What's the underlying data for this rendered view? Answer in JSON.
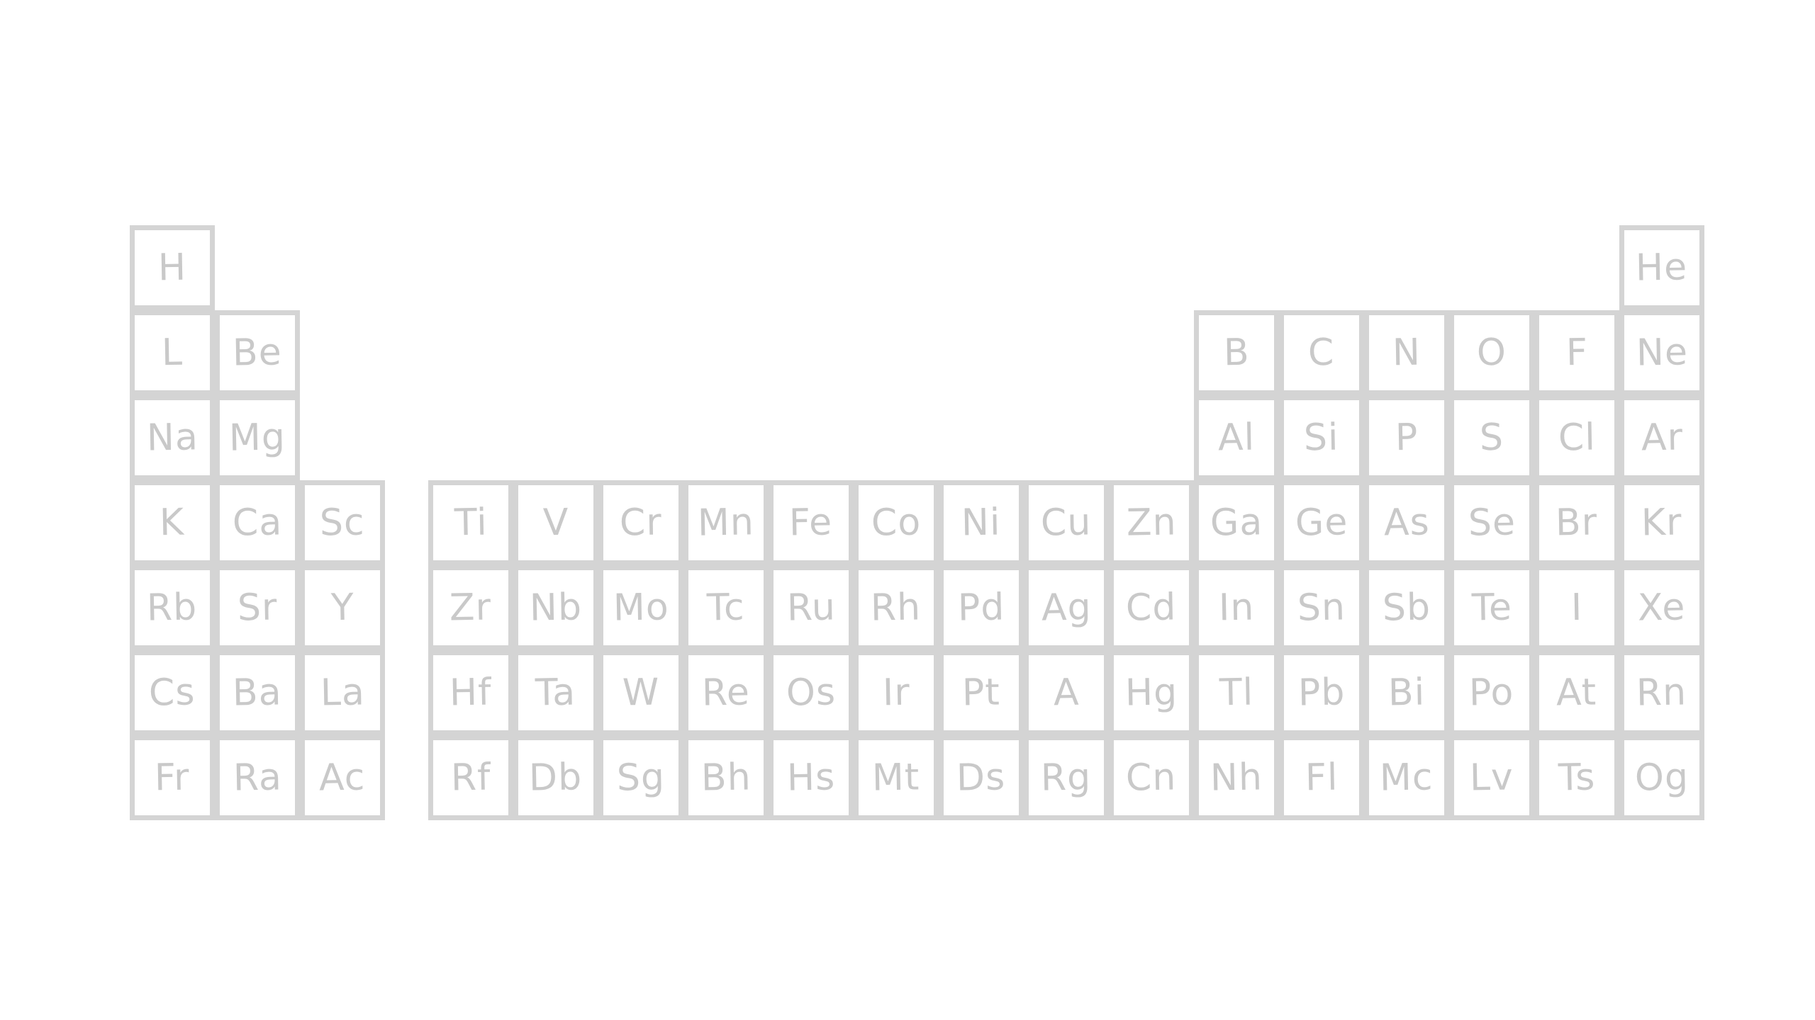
{
  "periodic_table": {
    "rows": [
      [
        "H",
        null,
        null,
        null,
        null,
        null,
        null,
        null,
        null,
        null,
        null,
        null,
        null,
        null,
        null,
        null,
        null,
        "He"
      ],
      [
        "L",
        "Be",
        null,
        null,
        null,
        null,
        null,
        null,
        null,
        null,
        null,
        null,
        "B",
        "C",
        "N",
        "O",
        "F",
        "Ne"
      ],
      [
        "Na",
        "Mg",
        null,
        null,
        null,
        null,
        null,
        null,
        null,
        null,
        null,
        null,
        "Al",
        "Si",
        "P",
        "S",
        "Cl",
        "Ar"
      ],
      [
        "K",
        "Ca",
        "Sc",
        "Ti",
        "V",
        "Cr",
        "Mn",
        "Fe",
        "Co",
        "Ni",
        "Cu",
        "Zn",
        "Ga",
        "Ge",
        "As",
        "Se",
        "Br",
        "Kr"
      ],
      [
        "Rb",
        "Sr",
        "Y",
        "Zr",
        "Nb",
        "Mo",
        "Tc",
        "Ru",
        "Rh",
        "Pd",
        "Ag",
        "Cd",
        "In",
        "Sn",
        "Sb",
        "Te",
        "I",
        "Xe"
      ],
      [
        "Cs",
        "Ba",
        "La",
        "Hf",
        "Ta",
        "W",
        "Re",
        "Os",
        "Ir",
        "Pt",
        "A",
        "Hg",
        "Tl",
        "Pb",
        "Bi",
        "Po",
        "At",
        "Rn"
      ],
      [
        "Fr",
        "Ra",
        "Ac",
        "Rf",
        "Db",
        "Sg",
        "Bh",
        "Hs",
        "Mt",
        "Ds",
        "Rg",
        "Cn",
        "Nh",
        "Fl",
        "Mc",
        "Lv",
        "Ts",
        "Og"
      ]
    ],
    "colors": {
      "line": "#d4d4d4",
      "text": "#c9c9c9",
      "background": "#ffffff"
    }
  }
}
